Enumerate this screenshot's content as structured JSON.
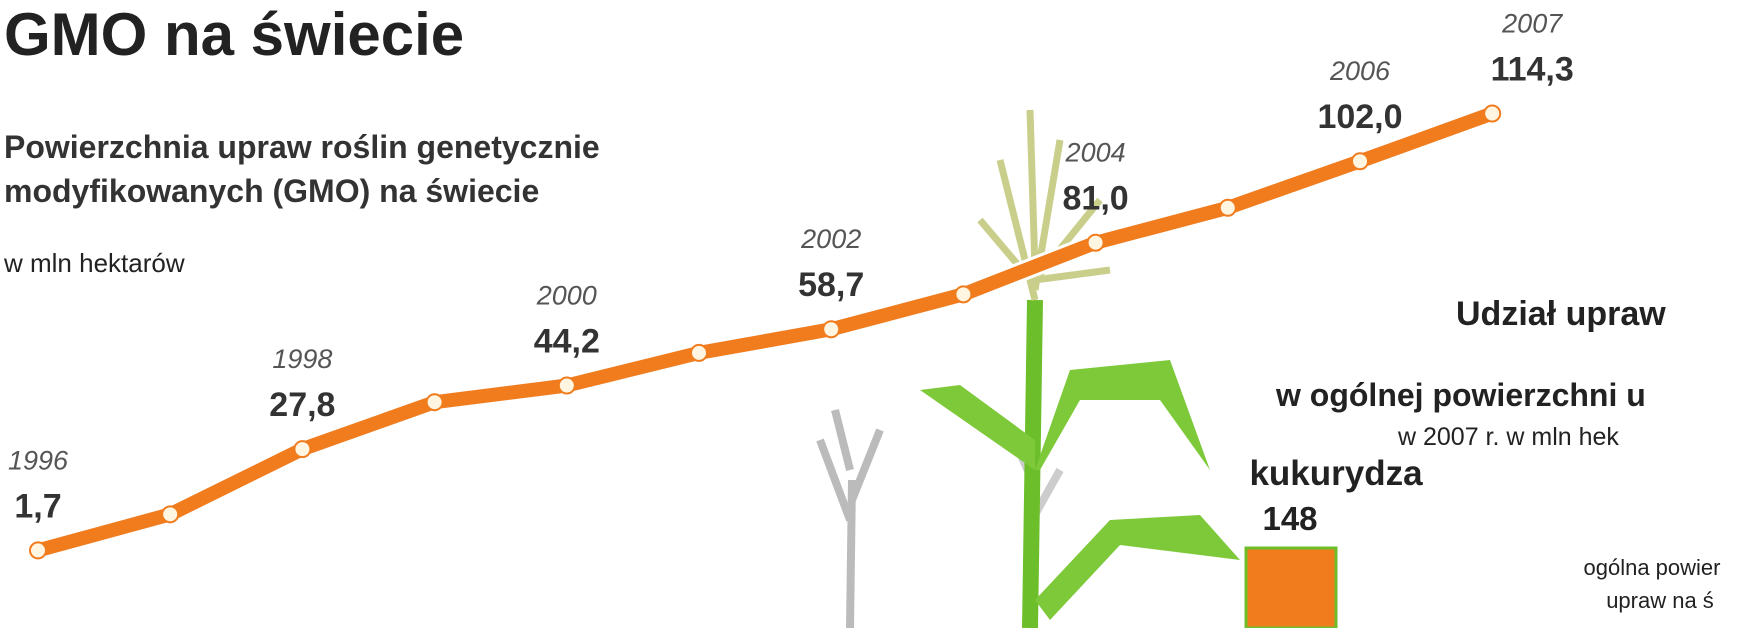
{
  "chart_data": {
    "type": "line",
    "title": "GMO na świecie",
    "subtitle": "Powierzchnia upraw roślin genetycznie modyfikowanych (GMO) na świecie",
    "unit": "w mln hektarów",
    "categories": [
      "1996",
      null,
      "1998",
      null,
      "2000",
      null,
      "2002",
      null,
      "2004",
      null,
      "2006",
      "2007"
    ],
    "series": [
      {
        "color": "#f07c1e",
        "values": [
          1.7,
          11.0,
          27.8,
          39.9,
          44.2,
          52.6,
          58.7,
          67.7,
          81.0,
          90.0,
          102.0,
          114.3
        ],
        "value_labels": [
          "1,7",
          null,
          "27,8",
          null,
          "44,2",
          null,
          "58,7",
          null,
          "81,0",
          null,
          "102,0",
          "114,3"
        ]
      }
    ],
    "inset": {
      "title_lines": [
        "Udział upraw",
        "w ogólnej powierzchni u"
      ],
      "unit": "w 2007 r. w mln hek",
      "crop": "kukurydza",
      "total": 148,
      "total_label": "148",
      "color": "#f07c1e",
      "note_lines": [
        "ogólna powier",
        "upraw na ś"
      ]
    }
  }
}
